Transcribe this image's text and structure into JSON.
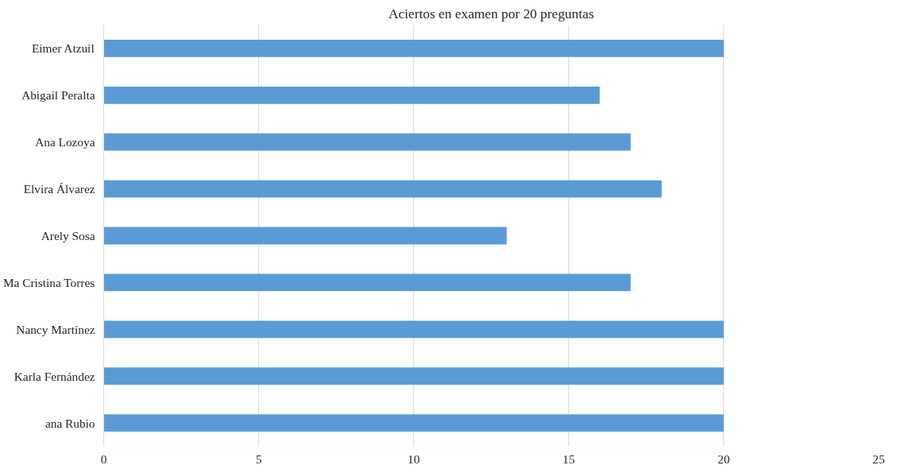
{
  "chart_data": {
    "type": "bar",
    "orientation": "horizontal",
    "title": "Aciertos en examen por 20 preguntas",
    "categories": [
      "Eimer Atzuil",
      "Abigail Peralta",
      "Ana Lozoya",
      "Elvira Álvarez",
      "Arely Sosa",
      "Ma Cristina Torres",
      "Nancy Martínez",
      "Karla Fernández",
      "ana Rubio"
    ],
    "values": [
      20,
      16,
      17,
      18,
      13,
      17,
      20,
      20,
      20
    ],
    "color": "#5b9bd5",
    "xlim": [
      0,
      25
    ],
    "xticks": [
      0,
      5,
      10,
      15,
      20,
      25
    ],
    "grid": "x"
  }
}
